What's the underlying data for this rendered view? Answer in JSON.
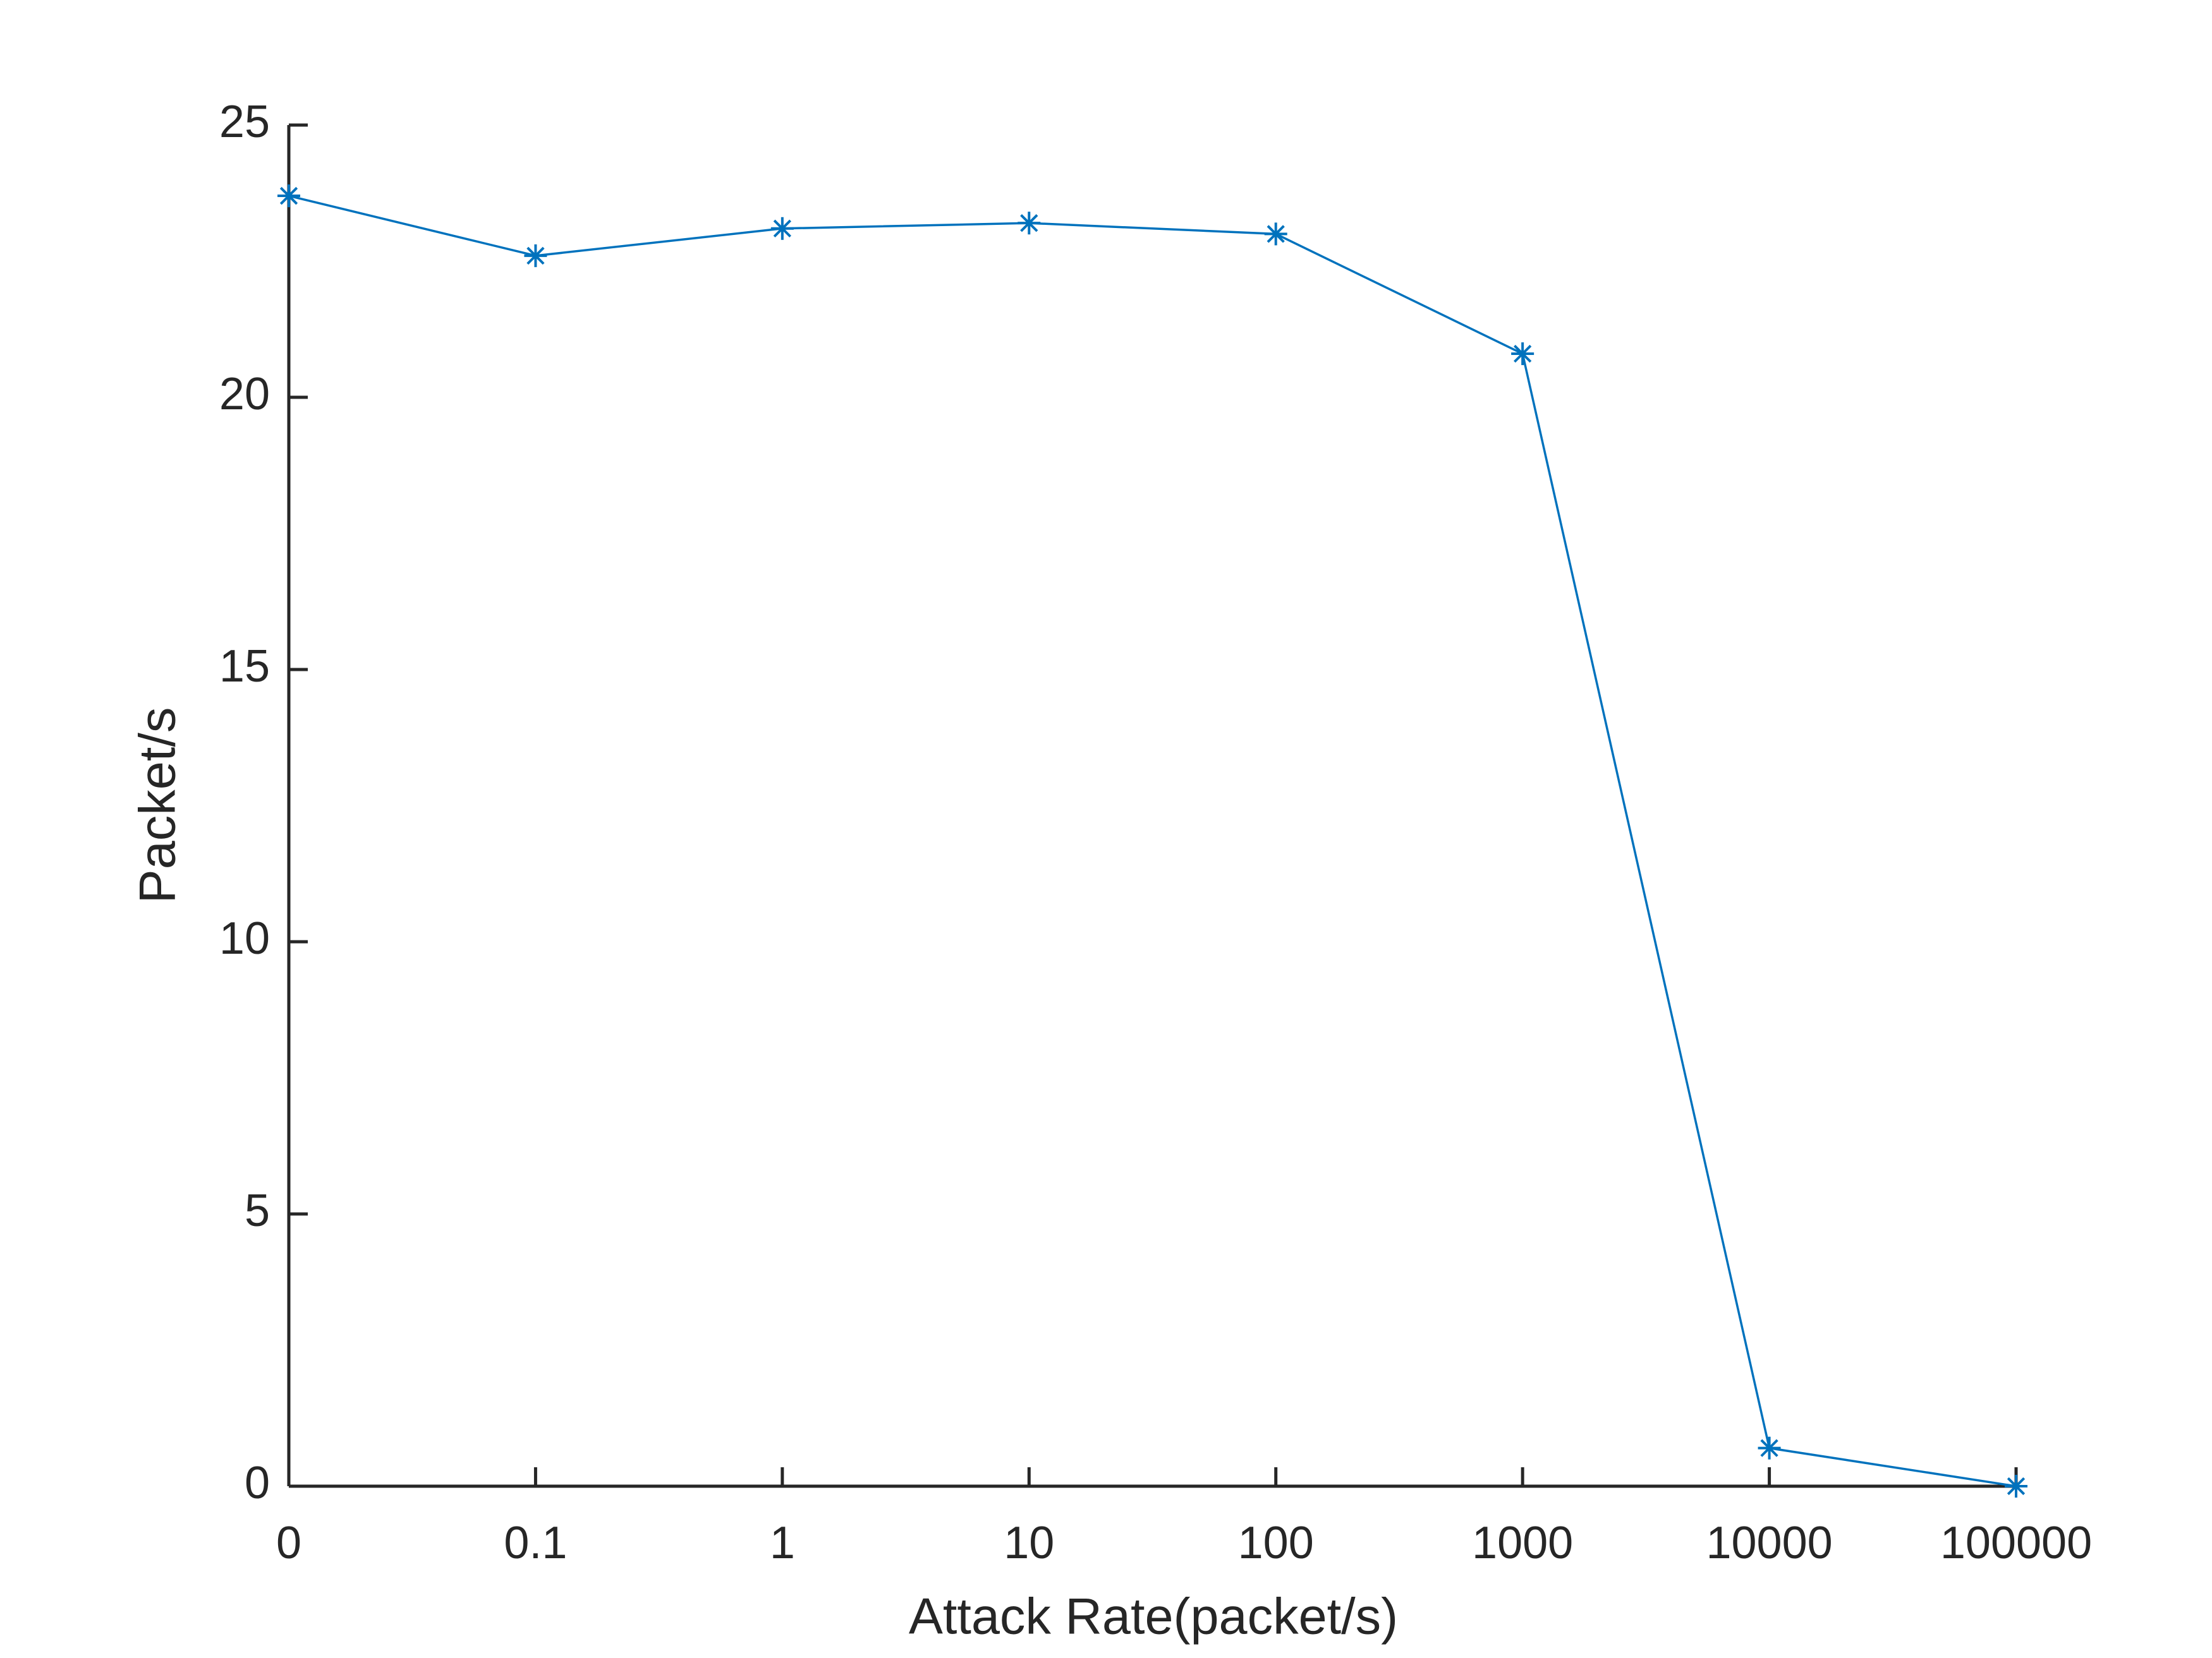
{
  "chart_data": {
    "type": "line",
    "xlabel": "Attack Rate(packet/s)",
    "ylabel": "Packet/s",
    "categories": [
      "0",
      "0.1",
      "1",
      "10",
      "100",
      "1000",
      "10000",
      "100000"
    ],
    "values": [
      23.7,
      22.6,
      23.1,
      23.2,
      23.0,
      20.8,
      0.7,
      0.0
    ],
    "color": "#0072bd",
    "marker": "asterisk",
    "ylim": [
      0,
      25
    ],
    "yticks": [
      0,
      5,
      10,
      15,
      20,
      25
    ],
    "grid": false
  }
}
